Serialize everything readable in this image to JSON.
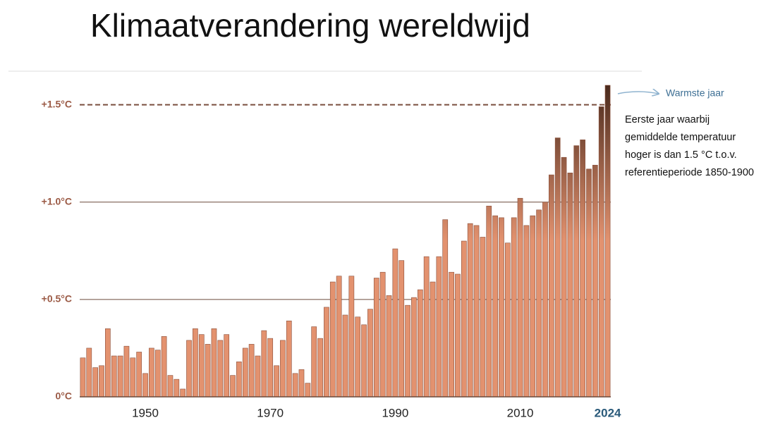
{
  "chart_data": {
    "type": "bar",
    "title": "Klimaatverandering wereldwijd",
    "x": [
      1940,
      1941,
      1942,
      1943,
      1944,
      1945,
      1946,
      1947,
      1948,
      1949,
      1950,
      1951,
      1952,
      1953,
      1954,
      1955,
      1956,
      1957,
      1958,
      1959,
      1960,
      1961,
      1962,
      1963,
      1964,
      1965,
      1966,
      1967,
      1968,
      1969,
      1970,
      1971,
      1972,
      1973,
      1974,
      1975,
      1976,
      1977,
      1978,
      1979,
      1980,
      1981,
      1982,
      1983,
      1984,
      1985,
      1986,
      1987,
      1988,
      1989,
      1990,
      1991,
      1992,
      1993,
      1994,
      1995,
      1996,
      1997,
      1998,
      1999,
      2000,
      2001,
      2002,
      2003,
      2004,
      2005,
      2006,
      2007,
      2008,
      2009,
      2010,
      2011,
      2012,
      2013,
      2014,
      2015,
      2016,
      2017,
      2018,
      2019,
      2020,
      2021,
      2022,
      2023,
      2024
    ],
    "values": [
      0.2,
      0.25,
      0.15,
      0.16,
      0.35,
      0.21,
      0.21,
      0.26,
      0.2,
      0.23,
      0.12,
      0.25,
      0.24,
      0.31,
      0.11,
      0.09,
      0.04,
      0.29,
      0.35,
      0.32,
      0.27,
      0.35,
      0.29,
      0.32,
      0.11,
      0.18,
      0.25,
      0.27,
      0.21,
      0.34,
      0.3,
      0.16,
      0.29,
      0.39,
      0.12,
      0.14,
      0.07,
      0.36,
      0.3,
      0.46,
      0.59,
      0.62,
      0.42,
      0.62,
      0.41,
      0.37,
      0.45,
      0.61,
      0.64,
      0.52,
      0.76,
      0.7,
      0.47,
      0.51,
      0.55,
      0.72,
      0.59,
      0.72,
      0.91,
      0.64,
      0.63,
      0.8,
      0.89,
      0.88,
      0.82,
      0.98,
      0.93,
      0.92,
      0.79,
      0.92,
      1.02,
      0.88,
      0.93,
      0.96,
      1.0,
      1.14,
      1.33,
      1.23,
      1.15,
      1.29,
      1.32,
      1.17,
      1.19,
      1.49,
      1.6
    ],
    "color_low": "#e3926f",
    "color_high": "#4a2a1d",
    "xlim": [
      1939.5,
      2024.5
    ],
    "xticks": [
      1950,
      1970,
      1990,
      2010,
      2024
    ],
    "ylim": [
      0,
      1.6
    ],
    "yticks": [
      {
        "value": 0,
        "label": "0°C"
      },
      {
        "value": 0.5,
        "label": "+0.5°C"
      },
      {
        "value": 1.0,
        "label": "+1.0°C"
      },
      {
        "value": 1.5,
        "label": "+1.5°C"
      }
    ],
    "grid": true,
    "reference_line": 1.5,
    "annotation": {
      "label": "Warmste jaar",
      "note": [
        "Eerste jaar waarbij",
        "gemiddelde temperatuur",
        "hoger is dan 1.5 °C t.o.v.",
        "referentieperiode 1850-1900"
      ]
    }
  }
}
